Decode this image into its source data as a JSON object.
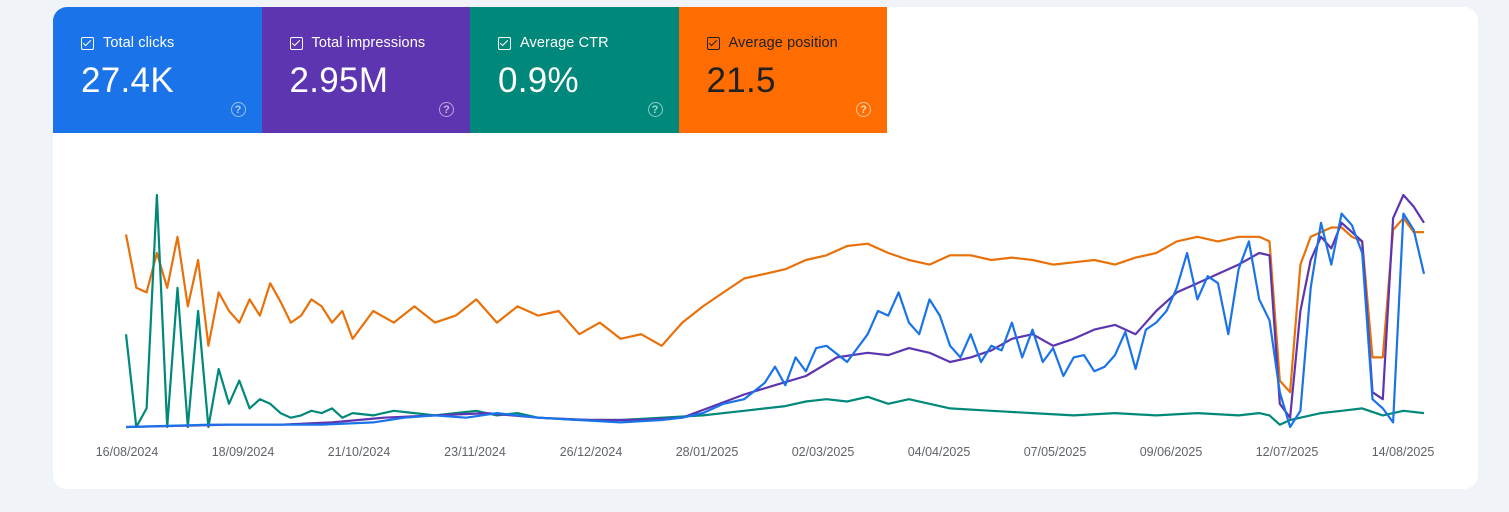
{
  "metrics": [
    {
      "label": "Total clicks",
      "value": "27.4K",
      "color": "#1a73e8",
      "tile_bg": "#1a73e8",
      "checked": true,
      "help_icon": "question-circle-icon"
    },
    {
      "label": "Total impressions",
      "value": "2.95M",
      "color": "#5e35b1",
      "tile_bg": "#5e35b1",
      "checked": true,
      "help_icon": "question-circle-icon"
    },
    {
      "label": "Average CTR",
      "value": "0.9%",
      "color": "#00897b",
      "tile_bg": "#00897b",
      "checked": true,
      "help_icon": "question-circle-icon"
    },
    {
      "label": "Average position",
      "value": "21.5",
      "color": "#e8710a",
      "tile_bg": "#ff6d00",
      "checked": true,
      "help_icon": "question-circle-icon"
    }
  ],
  "chart_data": {
    "type": "line",
    "x_tick_labels": [
      "16/08/2024",
      "18/09/2024",
      "21/10/2024",
      "23/11/2024",
      "26/12/2024",
      "28/01/2025",
      "02/03/2025",
      "04/04/2025",
      "07/05/2025",
      "09/06/2025",
      "12/07/2025",
      "14/08/2025"
    ],
    "grid": false,
    "y_axes_visible": false,
    "value_scale": "relative_0_to_100_per_series",
    "series": [
      {
        "name": "Total clicks",
        "color": "#1a73e8",
        "points": [
          [
            0,
            0
          ],
          [
            8,
            1
          ],
          [
            12,
            1
          ],
          [
            15,
            1
          ],
          [
            17,
            1
          ],
          [
            19,
            1
          ],
          [
            24,
            2
          ],
          [
            27,
            4
          ],
          [
            30,
            5
          ],
          [
            33,
            4
          ],
          [
            36,
            6
          ],
          [
            40,
            4
          ],
          [
            44,
            3
          ],
          [
            48,
            2
          ],
          [
            52,
            3
          ],
          [
            54,
            4
          ],
          [
            56,
            6
          ],
          [
            58,
            10
          ],
          [
            60,
            12
          ],
          [
            62,
            19
          ],
          [
            63,
            26
          ],
          [
            64,
            18
          ],
          [
            65,
            30
          ],
          [
            66,
            24
          ],
          [
            67,
            34
          ],
          [
            68,
            35
          ],
          [
            70,
            28
          ],
          [
            72,
            40
          ],
          [
            73,
            50
          ],
          [
            74,
            48
          ],
          [
            75,
            58
          ],
          [
            76,
            45
          ],
          [
            77,
            40
          ],
          [
            78,
            55
          ],
          [
            79,
            48
          ],
          [
            80,
            35
          ],
          [
            81,
            30
          ],
          [
            82,
            40
          ],
          [
            83,
            28
          ],
          [
            84,
            35
          ],
          [
            85,
            33
          ],
          [
            86,
            45
          ],
          [
            87,
            30
          ],
          [
            88,
            42
          ],
          [
            89,
            28
          ],
          [
            90,
            34
          ],
          [
            91,
            22
          ],
          [
            92,
            30
          ],
          [
            93,
            31
          ],
          [
            94,
            24
          ],
          [
            95,
            26
          ],
          [
            96,
            31
          ],
          [
            97,
            41
          ],
          [
            98,
            25
          ],
          [
            99,
            42
          ],
          [
            100,
            45
          ],
          [
            101,
            50
          ],
          [
            102,
            60
          ],
          [
            103,
            75
          ],
          [
            104,
            55
          ],
          [
            105,
            65
          ],
          [
            106,
            62
          ],
          [
            107,
            40
          ],
          [
            108,
            68
          ],
          [
            109,
            80
          ],
          [
            110,
            55
          ],
          [
            111,
            46
          ],
          [
            112,
            15
          ],
          [
            113,
            0
          ],
          [
            114,
            7
          ],
          [
            115,
            60
          ],
          [
            116,
            88
          ],
          [
            117,
            70
          ],
          [
            118,
            92
          ],
          [
            119,
            87
          ],
          [
            120,
            75
          ],
          [
            121,
            12
          ],
          [
            122,
            8
          ],
          [
            123,
            2
          ],
          [
            124,
            92
          ],
          [
            125,
            85
          ],
          [
            126,
            66
          ]
        ]
      },
      {
        "name": "Total impressions",
        "color": "#5e35b1",
        "points": [
          [
            0,
            0
          ],
          [
            10,
            1
          ],
          [
            15,
            1
          ],
          [
            20,
            2
          ],
          [
            25,
            4
          ],
          [
            30,
            5
          ],
          [
            35,
            6
          ],
          [
            40,
            4
          ],
          [
            45,
            3
          ],
          [
            50,
            3
          ],
          [
            54,
            4
          ],
          [
            57,
            9
          ],
          [
            60,
            14
          ],
          [
            63,
            18
          ],
          [
            66,
            22
          ],
          [
            69,
            30
          ],
          [
            72,
            32
          ],
          [
            74,
            31
          ],
          [
            76,
            34
          ],
          [
            78,
            32
          ],
          [
            80,
            28
          ],
          [
            82,
            30
          ],
          [
            84,
            33
          ],
          [
            86,
            38
          ],
          [
            88,
            40
          ],
          [
            90,
            35
          ],
          [
            92,
            38
          ],
          [
            94,
            42
          ],
          [
            96,
            44
          ],
          [
            98,
            40
          ],
          [
            100,
            50
          ],
          [
            102,
            58
          ],
          [
            104,
            62
          ],
          [
            106,
            66
          ],
          [
            108,
            70
          ],
          [
            110,
            75
          ],
          [
            111,
            74
          ],
          [
            112,
            10
          ],
          [
            113,
            4
          ],
          [
            114,
            50
          ],
          [
            115,
            72
          ],
          [
            116,
            82
          ],
          [
            117,
            77
          ],
          [
            118,
            88
          ],
          [
            119,
            84
          ],
          [
            120,
            80
          ],
          [
            121,
            15
          ],
          [
            122,
            12
          ],
          [
            123,
            90
          ],
          [
            124,
            100
          ],
          [
            125,
            95
          ],
          [
            126,
            88
          ]
        ]
      },
      {
        "name": "Average CTR",
        "color": "#00897b",
        "points": [
          [
            0,
            40
          ],
          [
            1,
            0
          ],
          [
            2,
            8
          ],
          [
            3,
            100
          ],
          [
            4,
            0
          ],
          [
            5,
            60
          ],
          [
            6,
            0
          ],
          [
            7,
            50
          ],
          [
            8,
            0
          ],
          [
            9,
            25
          ],
          [
            10,
            10
          ],
          [
            11,
            20
          ],
          [
            12,
            8
          ],
          [
            13,
            12
          ],
          [
            14,
            10
          ],
          [
            15,
            6
          ],
          [
            16,
            4
          ],
          [
            17,
            5
          ],
          [
            18,
            7
          ],
          [
            19,
            6
          ],
          [
            20,
            8
          ],
          [
            21,
            4
          ],
          [
            22,
            6
          ],
          [
            24,
            5
          ],
          [
            26,
            7
          ],
          [
            28,
            6
          ],
          [
            30,
            5
          ],
          [
            32,
            6
          ],
          [
            34,
            7
          ],
          [
            36,
            5
          ],
          [
            38,
            6
          ],
          [
            40,
            4
          ],
          [
            44,
            3
          ],
          [
            48,
            3
          ],
          [
            52,
            4
          ],
          [
            56,
            5
          ],
          [
            60,
            7
          ],
          [
            64,
            9
          ],
          [
            66,
            11
          ],
          [
            68,
            12
          ],
          [
            70,
            11
          ],
          [
            72,
            13
          ],
          [
            74,
            10
          ],
          [
            76,
            12
          ],
          [
            78,
            10
          ],
          [
            80,
            8
          ],
          [
            84,
            7
          ],
          [
            88,
            6
          ],
          [
            92,
            5
          ],
          [
            96,
            6
          ],
          [
            100,
            5
          ],
          [
            104,
            6
          ],
          [
            108,
            5
          ],
          [
            110,
            6
          ],
          [
            111,
            5
          ],
          [
            112,
            1
          ],
          [
            113,
            3
          ],
          [
            114,
            4
          ],
          [
            116,
            6
          ],
          [
            118,
            7
          ],
          [
            120,
            8
          ],
          [
            122,
            5
          ],
          [
            124,
            7
          ],
          [
            126,
            6
          ]
        ]
      },
      {
        "name": "Average position",
        "color": "#e8710a",
        "points": [
          [
            0,
            83
          ],
          [
            1,
            60
          ],
          [
            2,
            58
          ],
          [
            3,
            75
          ],
          [
            4,
            60
          ],
          [
            5,
            82
          ],
          [
            6,
            52
          ],
          [
            7,
            72
          ],
          [
            8,
            35
          ],
          [
            9,
            58
          ],
          [
            10,
            50
          ],
          [
            11,
            45
          ],
          [
            12,
            55
          ],
          [
            13,
            48
          ],
          [
            14,
            62
          ],
          [
            15,
            54
          ],
          [
            16,
            45
          ],
          [
            17,
            48
          ],
          [
            18,
            55
          ],
          [
            19,
            52
          ],
          [
            20,
            45
          ],
          [
            21,
            50
          ],
          [
            22,
            38
          ],
          [
            24,
            50
          ],
          [
            26,
            45
          ],
          [
            28,
            52
          ],
          [
            30,
            45
          ],
          [
            32,
            48
          ],
          [
            34,
            55
          ],
          [
            36,
            45
          ],
          [
            38,
            52
          ],
          [
            40,
            48
          ],
          [
            42,
            50
          ],
          [
            44,
            40
          ],
          [
            46,
            45
          ],
          [
            48,
            38
          ],
          [
            50,
            40
          ],
          [
            52,
            35
          ],
          [
            54,
            45
          ],
          [
            56,
            52
          ],
          [
            58,
            58
          ],
          [
            60,
            64
          ],
          [
            62,
            66
          ],
          [
            64,
            68
          ],
          [
            66,
            72
          ],
          [
            68,
            74
          ],
          [
            70,
            78
          ],
          [
            72,
            79
          ],
          [
            74,
            75
          ],
          [
            76,
            72
          ],
          [
            78,
            70
          ],
          [
            80,
            74
          ],
          [
            82,
            74
          ],
          [
            84,
            72
          ],
          [
            86,
            73
          ],
          [
            88,
            72
          ],
          [
            90,
            70
          ],
          [
            92,
            71
          ],
          [
            94,
            72
          ],
          [
            96,
            70
          ],
          [
            98,
            73
          ],
          [
            100,
            75
          ],
          [
            102,
            80
          ],
          [
            104,
            82
          ],
          [
            106,
            80
          ],
          [
            108,
            82
          ],
          [
            110,
            82
          ],
          [
            111,
            80
          ],
          [
            112,
            20
          ],
          [
            113,
            15
          ],
          [
            114,
            70
          ],
          [
            115,
            82
          ],
          [
            116,
            84
          ],
          [
            117,
            86
          ],
          [
            118,
            86
          ],
          [
            119,
            82
          ],
          [
            120,
            80
          ],
          [
            121,
            30
          ],
          [
            122,
            30
          ],
          [
            123,
            85
          ],
          [
            124,
            90
          ],
          [
            125,
            84
          ],
          [
            126,
            84
          ]
        ]
      }
    ]
  }
}
